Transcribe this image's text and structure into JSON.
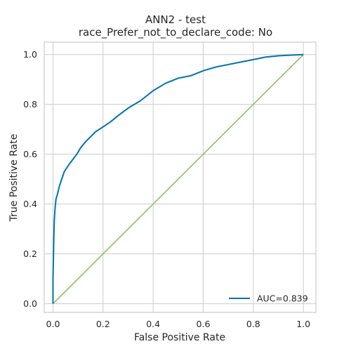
{
  "chart_data": {
    "type": "line",
    "title_lines": [
      "ANN2 - test",
      "race_Prefer_not_to_declare_code: No"
    ],
    "xlabel": "False Positive Rate",
    "ylabel": "True Positive Rate",
    "xlim": [
      -0.035,
      1.05
    ],
    "ylim": [
      -0.035,
      1.05
    ],
    "xticks": [
      0.0,
      0.2,
      0.4,
      0.6,
      0.8,
      1.0
    ],
    "xtick_labels": [
      "0.0",
      "0.2",
      "0.4",
      "0.6",
      "0.8",
      "1.0"
    ],
    "yticks": [
      0.0,
      0.2,
      0.4,
      0.6,
      0.8,
      1.0
    ],
    "ytick_labels": [
      "0.0",
      "0.2",
      "0.4",
      "0.6",
      "0.8",
      "1.0"
    ],
    "grid": true,
    "legend_position": "lower-right",
    "series": [
      {
        "name": "AUC=0.839",
        "color": "#0072b2",
        "x": [
          0.0,
          0.0,
          0.003,
          0.005,
          0.008,
          0.012,
          0.018,
          0.025,
          0.035,
          0.045,
          0.055,
          0.065,
          0.08,
          0.095,
          0.11,
          0.13,
          0.15,
          0.17,
          0.2,
          0.23,
          0.26,
          0.3,
          0.35,
          0.4,
          0.45,
          0.5,
          0.55,
          0.6,
          0.65,
          0.7,
          0.75,
          0.8,
          0.85,
          0.9,
          0.95,
          1.0
        ],
        "y": [
          0.0,
          0.1,
          0.25,
          0.33,
          0.38,
          0.42,
          0.44,
          0.47,
          0.5,
          0.53,
          0.545,
          0.56,
          0.58,
          0.6,
          0.625,
          0.65,
          0.67,
          0.69,
          0.71,
          0.73,
          0.755,
          0.785,
          0.815,
          0.855,
          0.885,
          0.905,
          0.915,
          0.935,
          0.95,
          0.96,
          0.97,
          0.98,
          0.99,
          0.995,
          0.998,
          1.0
        ]
      },
      {
        "name": "",
        "color": "#9bc46f",
        "x": [
          0.0,
          1.0
        ],
        "y": [
          0.0,
          1.0
        ]
      }
    ]
  }
}
